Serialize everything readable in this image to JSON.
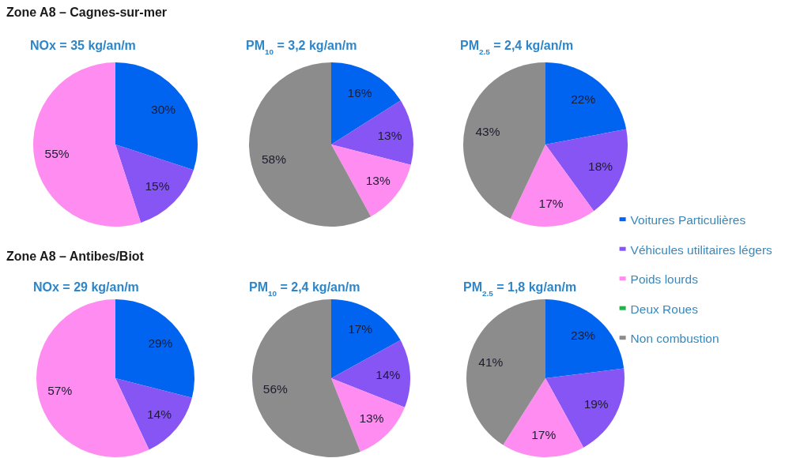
{
  "chart_data": [
    {
      "type": "pie",
      "title": "Zone A8 – Cagnes-sur-mer",
      "subtitle": "NOx = 35 kg/an/m",
      "categories": [
        null,
        null,
        null
      ],
      "values": [
        30,
        15,
        55
      ],
      "colors": [
        "#0064f0",
        "#8855f5",
        "#ff8cf0"
      ],
      "value_labels": [
        "30%",
        "15%",
        "55%"
      ],
      "legend": false
    },
    {
      "type": "pie",
      "title": "PM$_{10}$ = 3,2 kg/an/m",
      "categories": [
        null,
        null,
        null,
        null
      ],
      "values": [
        16,
        13,
        13,
        58
      ],
      "colors": [
        "#0064f0",
        "#8855f5",
        "#ff8cf0",
        "#8c8c8c"
      ],
      "value_labels": [
        "16%",
        "13%",
        "13%",
        "58%"
      ],
      "legend": false
    },
    {
      "type": "pie",
      "title": "PM$_{2.5}$ = 2,4 kg/an/m",
      "categories": [
        "Voitures Particulières",
        "Véhicules utilitaires légers",
        "Poids lourds",
        "Deux Roues",
        "Non combustion"
      ],
      "values": [
        22,
        18,
        17,
        0,
        43
      ],
      "colors": [
        "#0064f0",
        "#8855f5",
        "#ff8cf0",
        "#22b24c",
        "#8c8c8c"
      ],
      "value_labels": [
        "22%",
        "18%",
        "17%",
        null,
        "43%"
      ],
      "legend": "bottom right"
    },
    {
      "type": "pie",
      "title": "Zone A8 – Antibes/Biot",
      "subtitle": "NOx = 29 kg/an/m",
      "categories": [
        null,
        null,
        null
      ],
      "values": [
        29,
        14,
        57
      ],
      "colors": [
        "#0064f0",
        "#8855f5",
        "#ff8cf0"
      ],
      "value_labels": [
        "29%",
        "14%",
        "57%"
      ],
      "legend": false
    },
    {
      "type": "pie",
      "title": "PM$_{10}$ = 2,4 kg/an/m",
      "categories": [
        null,
        null,
        null,
        null
      ],
      "values": [
        17,
        14,
        13,
        56
      ],
      "colors": [
        "#0064f0",
        "#8855f5",
        "#ff8cf0",
        "#8c8c8c"
      ],
      "value_labels": [
        "17%",
        "14%",
        "13%",
        "56%"
      ],
      "legend": false
    },
    {
      "type": "pie",
      "title": "PM$_{2.5}$ = 1,8 kg/an/m",
      "categories": [
        null,
        null,
        null,
        null
      ],
      "values": [
        23,
        19,
        17,
        41
      ],
      "colors": [
        "#0064f0",
        "#8855f5",
        "#ff8cf0",
        "#8c8c8c"
      ],
      "value_labels": [
        "23%",
        "19%",
        "17%",
        "41%"
      ],
      "legend": false
    }
  ]
}
